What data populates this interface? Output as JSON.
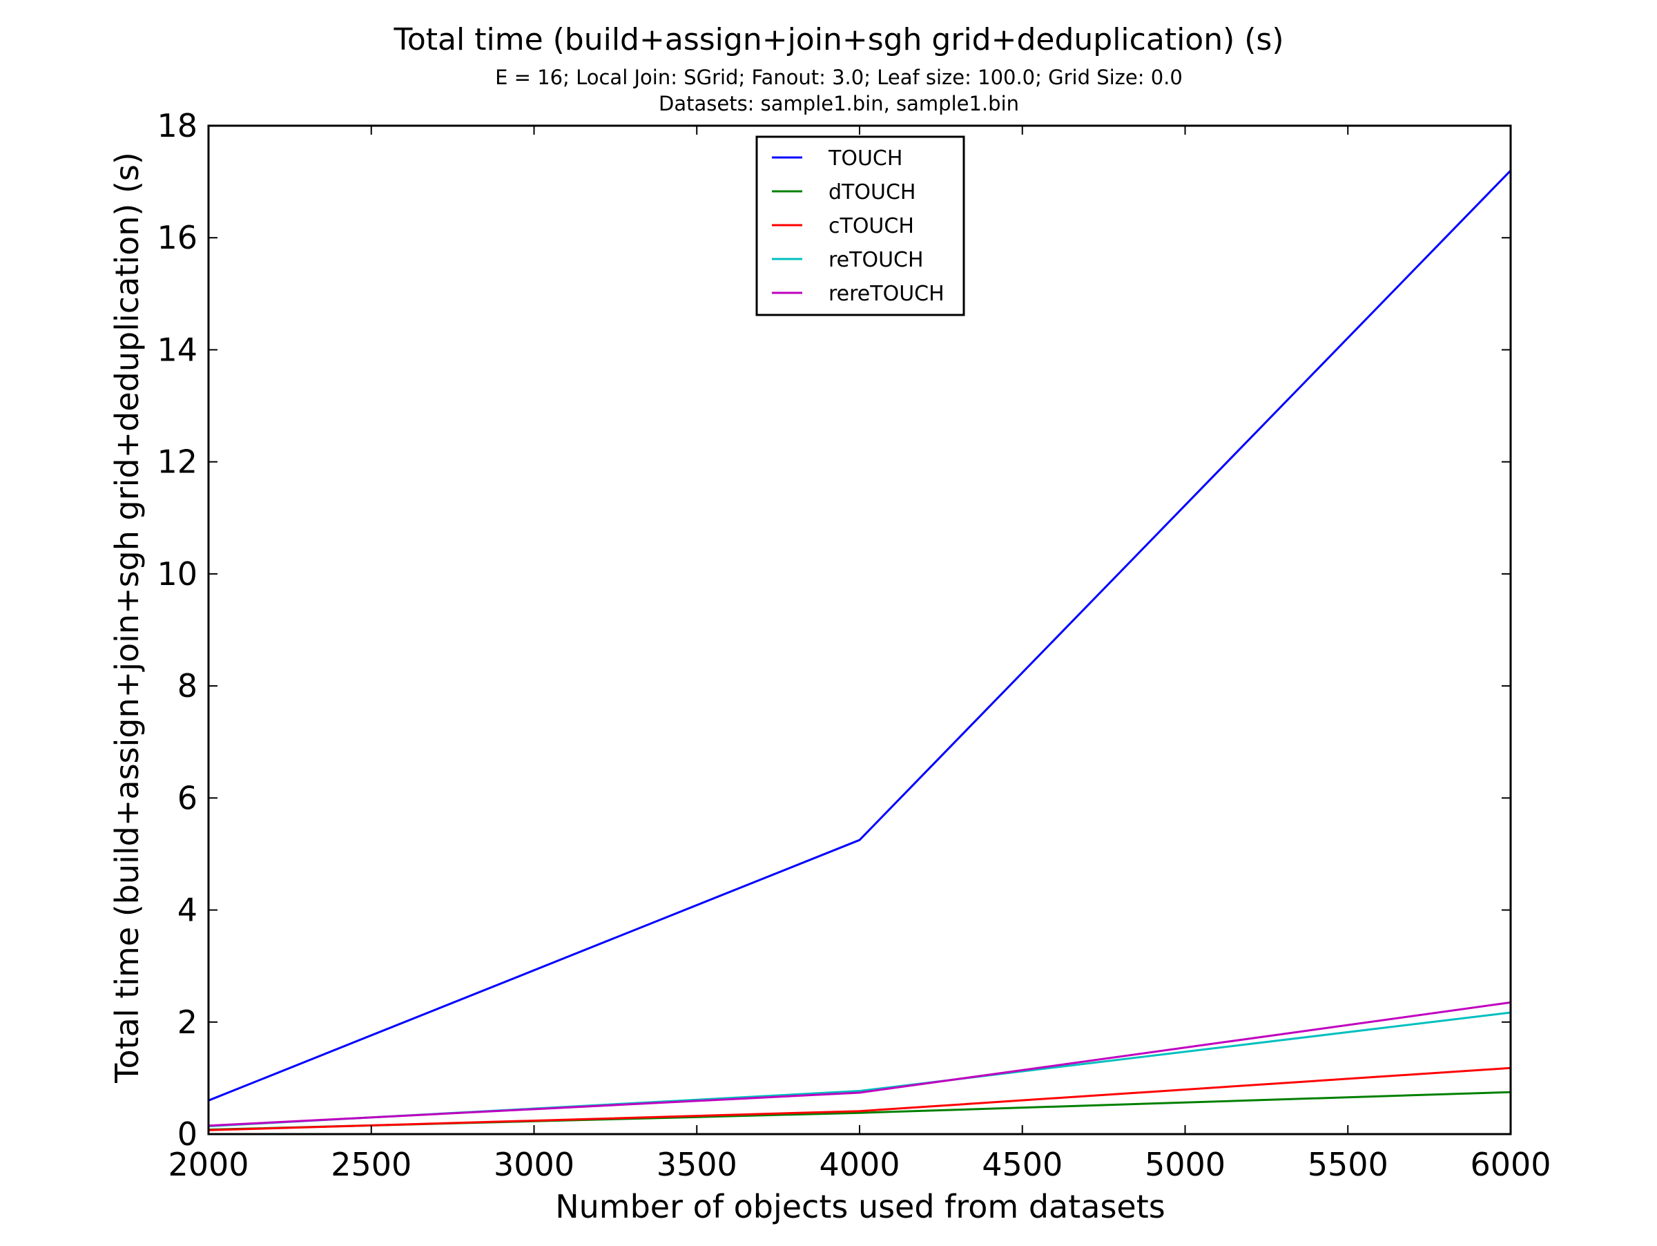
{
  "chart_data": {
    "type": "line",
    "title": "Total time (build+assign+join+sgh grid+deduplication) (s)",
    "subtitle_lines": [
      "E = 16; Local Join: SGrid; Fanout: 3.0; Leaf size: 100.0; Grid Size: 0.0",
      "Datasets: sample1.bin, sample1.bin"
    ],
    "xlabel": "Number of objects used from datasets",
    "ylabel": "Total time (build+assign+join+sgh grid+deduplication) (s)",
    "xlim": [
      2000,
      6000
    ],
    "ylim": [
      0,
      18
    ],
    "xticks": [
      2000,
      2500,
      3000,
      3500,
      4000,
      4500,
      5000,
      5500,
      6000
    ],
    "yticks": [
      0,
      2,
      4,
      6,
      8,
      10,
      12,
      14,
      16,
      18
    ],
    "grid": false,
    "legend_position": "upper-center",
    "x": [
      2000,
      4000,
      6000
    ],
    "series": [
      {
        "name": "TOUCH",
        "color": "#0000ff",
        "values": [
          0.6,
          5.25,
          17.2
        ]
      },
      {
        "name": "dTOUCH",
        "color": "#008000",
        "values": [
          0.08,
          0.38,
          0.75
        ]
      },
      {
        "name": "cTOUCH",
        "color": "#ff0000",
        "values": [
          0.07,
          0.41,
          1.18
        ]
      },
      {
        "name": "reTOUCH",
        "color": "#00bfbf",
        "values": [
          0.14,
          0.77,
          2.17
        ]
      },
      {
        "name": "rereTOUCH",
        "color": "#bf00bf",
        "values": [
          0.15,
          0.74,
          2.35
        ]
      }
    ]
  }
}
